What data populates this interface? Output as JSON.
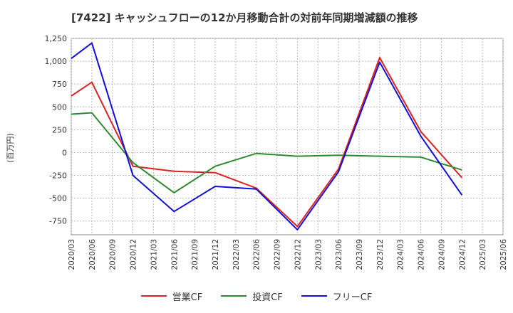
{
  "chart_data": {
    "type": "line",
    "title": "[7422]  キャッシュフローの12か月移動合計の対前年同期増減額の推移",
    "ylabel": "(百万円)",
    "xlabel": "",
    "ylim": [
      -900,
      1250
    ],
    "yticks": [
      1250,
      1000,
      750,
      500,
      250,
      0,
      -250,
      -500,
      -750
    ],
    "ytick_labels": [
      "1,250",
      "1,000",
      "750",
      "500",
      "250",
      "0",
      "-250",
      "-500",
      "-750"
    ],
    "categories": [
      "2020/03",
      "2020/06",
      "2020/09",
      "2020/12",
      "2021/03",
      "2021/06",
      "2021/09",
      "2021/12",
      "2022/03",
      "2022/06",
      "2022/09",
      "2022/12",
      "2023/03",
      "2023/06",
      "2023/09",
      "2023/12",
      "2024/03",
      "2024/06",
      "2024/09",
      "2024/12",
      "2025/03",
      "2025/06"
    ],
    "series": [
      {
        "name": "営業CF",
        "color": "#dd2222",
        "values": [
          620,
          770,
          null,
          -150,
          null,
          -205,
          null,
          -220,
          null,
          -390,
          null,
          -810,
          null,
          -180,
          null,
          1040,
          null,
          230,
          null,
          -275,
          null,
          null
        ]
      },
      {
        "name": "投資CF",
        "color": "#2e8b2e",
        "values": [
          420,
          435,
          null,
          -110,
          null,
          -440,
          null,
          -150,
          null,
          -10,
          null,
          -40,
          null,
          -30,
          null,
          -40,
          null,
          -50,
          null,
          -190,
          null,
          null
        ]
      },
      {
        "name": "フリーCF",
        "color": "#1010dd",
        "values": [
          1030,
          1200,
          null,
          -250,
          null,
          -645,
          null,
          -370,
          null,
          -400,
          null,
          -845,
          null,
          -210,
          null,
          990,
          null,
          180,
          null,
          -465,
          null,
          null
        ]
      }
    ],
    "grid": true,
    "legend_position": "bottom"
  }
}
